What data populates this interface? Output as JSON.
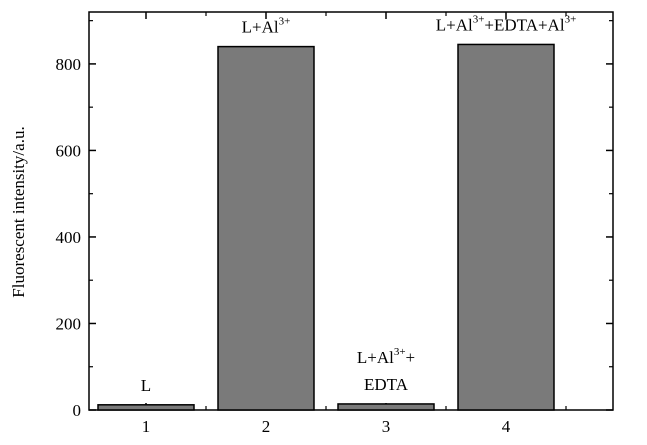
{
  "chart_data": {
    "type": "bar",
    "categories": [
      "1",
      "2",
      "3",
      "4"
    ],
    "values": [
      12,
      840,
      14,
      845
    ],
    "xlabel": "",
    "ylabel": "Fluorescent intensity/a.u.",
    "ylim": [
      0,
      920
    ],
    "yticks": [
      "0",
      "200",
      "400",
      "600",
      "800"
    ],
    "grid": false,
    "legend": "none",
    "bar_color": "#7a7a7a",
    "annotations": [
      {
        "lines": [
          {
            "text": "L"
          }
        ]
      },
      {
        "lines": [
          {
            "text": "L+Al",
            "sup": "3+"
          }
        ]
      },
      {
        "lines": [
          {
            "text": "L+Al",
            "sup": "3+",
            "tail": "+"
          },
          {
            "text": "EDTA"
          }
        ]
      },
      {
        "lines": [
          {
            "text": "L+Al",
            "sup": "3+",
            "tail": "+EDTA+Al",
            "sup2": "3+"
          }
        ]
      }
    ]
  }
}
